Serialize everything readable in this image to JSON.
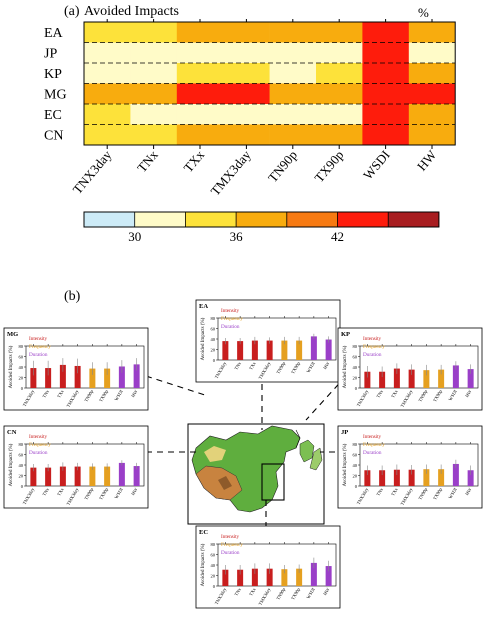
{
  "panel_a": {
    "label": "(a)",
    "title": "Avoided Impacts",
    "unit": "%",
    "colorbar_ticks": [
      "30",
      "36",
      "42"
    ]
  },
  "panel_b": {
    "label": "(b)",
    "ylabel": "Avoided Impacts (%)",
    "legend": [
      "Intensity",
      "Frequency",
      "Duration"
    ]
  },
  "colors": {
    "intensity": "#c81e1e",
    "frequency": "#e5a020",
    "duration": "#9a3fc8",
    "scale": [
      "#cdebf7",
      "#fffbc8",
      "#fde23a",
      "#f8ac0e",
      "#f77a12",
      "#fe1c0c",
      "#a81d20"
    ]
  },
  "chart_data": [
    {
      "type": "heatmap",
      "title": "Avoided Impacts",
      "rows": [
        "EA",
        "JP",
        "KP",
        "MG",
        "EC",
        "CN"
      ],
      "columns": [
        "TNX3day",
        "TNx",
        "TXx",
        "TMX3day",
        "TN90p",
        "TX90p",
        "WSDI",
        "HW"
      ],
      "values": [
        [
          35,
          35,
          38,
          38,
          38,
          38,
          44,
          38
        ],
        [
          30,
          30,
          32,
          32,
          32,
          32,
          44,
          30
        ],
        [
          30,
          30,
          35,
          35,
          32,
          35,
          44,
          38
        ],
        [
          38,
          38,
          44,
          44,
          38,
          38,
          42,
          44
        ],
        [
          35,
          30,
          32,
          32,
          32,
          32,
          42,
          38
        ],
        [
          35,
          35,
          38,
          38,
          38,
          38,
          44,
          38
        ]
      ],
      "colorbar_bins": [
        27,
        30,
        33,
        36,
        39,
        42,
        45,
        48
      ],
      "colorbar_ticks": [
        30,
        36,
        42
      ]
    },
    {
      "type": "bar",
      "region": "EA",
      "categories": [
        "TNX3day",
        "TNx",
        "TXx",
        "TMX3day",
        "TN90p",
        "TX90p",
        "WSDI",
        "HW"
      ],
      "groups": [
        "Intensity",
        "Intensity",
        "Intensity",
        "Intensity",
        "Frequency",
        "Frequency",
        "Duration",
        "Duration"
      ],
      "values": [
        36,
        36,
        37,
        37,
        37,
        37,
        45,
        39
      ],
      "errors": [
        6,
        6,
        7,
        6,
        7,
        7,
        5,
        6
      ],
      "ylim": [
        0,
        80
      ],
      "yticks": [
        0,
        20,
        40,
        60,
        80
      ]
    },
    {
      "type": "bar",
      "region": "MG",
      "categories": [
        "TNX3day",
        "TNx",
        "TXx",
        "TMX3day",
        "TN90p",
        "TX90p",
        "WSDI",
        "HW"
      ],
      "groups": [
        "Intensity",
        "Intensity",
        "Intensity",
        "Intensity",
        "Frequency",
        "Frequency",
        "Duration",
        "Duration"
      ],
      "values": [
        38,
        38,
        44,
        42,
        37,
        37,
        41,
        45
      ],
      "errors": [
        14,
        14,
        13,
        14,
        12,
        12,
        12,
        12
      ],
      "ylim": [
        0,
        80
      ],
      "yticks": [
        0,
        20,
        40,
        60,
        80
      ]
    },
    {
      "type": "bar",
      "region": "KP",
      "categories": [
        "TNX3day",
        "TNx",
        "TXx",
        "TMX3day",
        "TN90p",
        "TX90p",
        "WSDI",
        "HW"
      ],
      "groups": [
        "Intensity",
        "Intensity",
        "Intensity",
        "Intensity",
        "Frequency",
        "Frequency",
        "Duration",
        "Duration"
      ],
      "values": [
        31,
        31,
        37,
        35,
        34,
        35,
        43,
        36
      ],
      "errors": [
        11,
        10,
        10,
        10,
        10,
        9,
        8,
        9
      ],
      "ylim": [
        0,
        80
      ],
      "yticks": [
        0,
        20,
        40,
        60,
        80
      ]
    },
    {
      "type": "bar",
      "region": "CN",
      "categories": [
        "TNX3day",
        "TNx",
        "TXx",
        "TMX3day",
        "TN90p",
        "TX90p",
        "WSDI",
        "HW"
      ],
      "groups": [
        "Intensity",
        "Intensity",
        "Intensity",
        "Intensity",
        "Frequency",
        "Frequency",
        "Duration",
        "Duration"
      ],
      "values": [
        35,
        35,
        37,
        37,
        37,
        37,
        44,
        38
      ],
      "errors": [
        7,
        7,
        8,
        7,
        6,
        6,
        5,
        6
      ],
      "ylim": [
        0,
        80
      ],
      "yticks": [
        0,
        20,
        40,
        60,
        80
      ]
    },
    {
      "type": "bar",
      "region": "JP",
      "categories": [
        "TNX3day",
        "TNx",
        "TXx",
        "TMX3day",
        "TN90p",
        "TX90p",
        "WSDI",
        "HW"
      ],
      "groups": [
        "Intensity",
        "Intensity",
        "Intensity",
        "Intensity",
        "Frequency",
        "Frequency",
        "Duration",
        "Duration"
      ],
      "values": [
        30,
        30,
        31,
        31,
        32,
        32,
        42,
        30
      ],
      "errors": [
        9,
        9,
        10,
        9,
        9,
        9,
        8,
        9
      ],
      "ylim": [
        0,
        80
      ],
      "yticks": [
        0,
        20,
        40,
        60,
        80
      ]
    },
    {
      "type": "bar",
      "region": "EC",
      "categories": [
        "TNX3day",
        "TNx",
        "TXx",
        "TMX3day",
        "TN90p",
        "TX90p",
        "WSDI",
        "HW"
      ],
      "groups": [
        "Intensity",
        "Intensity",
        "Intensity",
        "Intensity",
        "Frequency",
        "Frequency",
        "Duration",
        "Duration"
      ],
      "values": [
        31,
        31,
        33,
        33,
        32,
        33,
        44,
        38
      ],
      "errors": [
        9,
        9,
        10,
        10,
        8,
        8,
        10,
        10
      ],
      "ylim": [
        0,
        80
      ],
      "yticks": [
        0,
        20,
        40,
        60,
        80
      ]
    }
  ]
}
